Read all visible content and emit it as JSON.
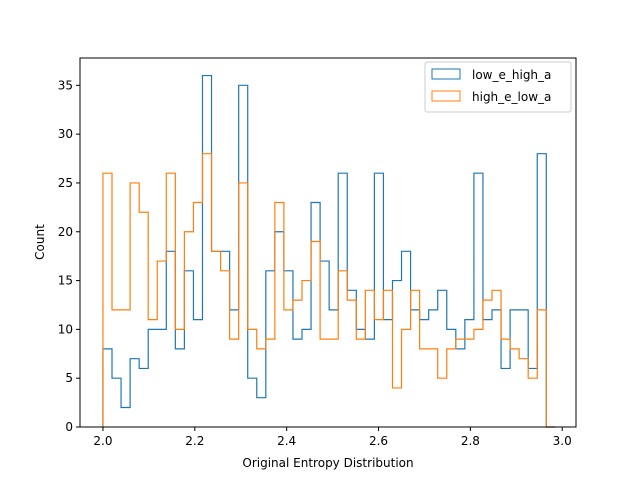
{
  "chart_data": {
    "type": "histogram-step",
    "xlabel": "Original Entropy Distribution",
    "ylabel": "Count",
    "xlim": [
      1.95,
      3.03
    ],
    "ylim": [
      0,
      37.8
    ],
    "x_ticks": [
      2.0,
      2.2,
      2.4,
      2.6,
      2.8,
      3.0
    ],
    "x_tick_labels": [
      "2.0",
      "2.2",
      "2.4",
      "2.6",
      "2.8",
      "3.0"
    ],
    "y_ticks": [
      0,
      5,
      10,
      15,
      20,
      25,
      30,
      35
    ],
    "y_tick_labels": [
      "0",
      "5",
      "10",
      "15",
      "20",
      "25",
      "30",
      "35"
    ],
    "grid": false,
    "legend_position": "top-right",
    "bin_start": 2.0,
    "bin_width": 0.0197,
    "series": [
      {
        "name": "low_e_high_a",
        "color": "#1f77b4",
        "values": [
          8,
          5,
          2,
          7,
          6,
          10,
          10,
          18,
          8,
          16,
          11,
          36,
          18,
          18,
          12,
          35,
          5,
          3,
          16,
          20,
          16,
          9,
          10,
          23,
          17,
          12,
          26,
          14,
          10,
          9,
          26,
          11,
          15,
          18,
          12,
          11,
          12,
          14,
          10,
          8,
          11,
          26,
          11,
          12,
          6,
          12,
          12,
          6,
          28,
          0
        ]
      },
      {
        "name": "high_e_low_a",
        "color": "#ff7f0e",
        "values": [
          26,
          12,
          12,
          25,
          22,
          11,
          17,
          26,
          10,
          20,
          23,
          28,
          18,
          16,
          9,
          25,
          10,
          8,
          9,
          23,
          12,
          13,
          15,
          19,
          9,
          9,
          16,
          13,
          9,
          14,
          11,
          14,
          4,
          10,
          14,
          8,
          8,
          5,
          8,
          9,
          9,
          10,
          13,
          14,
          9,
          8,
          7,
          5,
          12,
          0
        ]
      }
    ]
  }
}
